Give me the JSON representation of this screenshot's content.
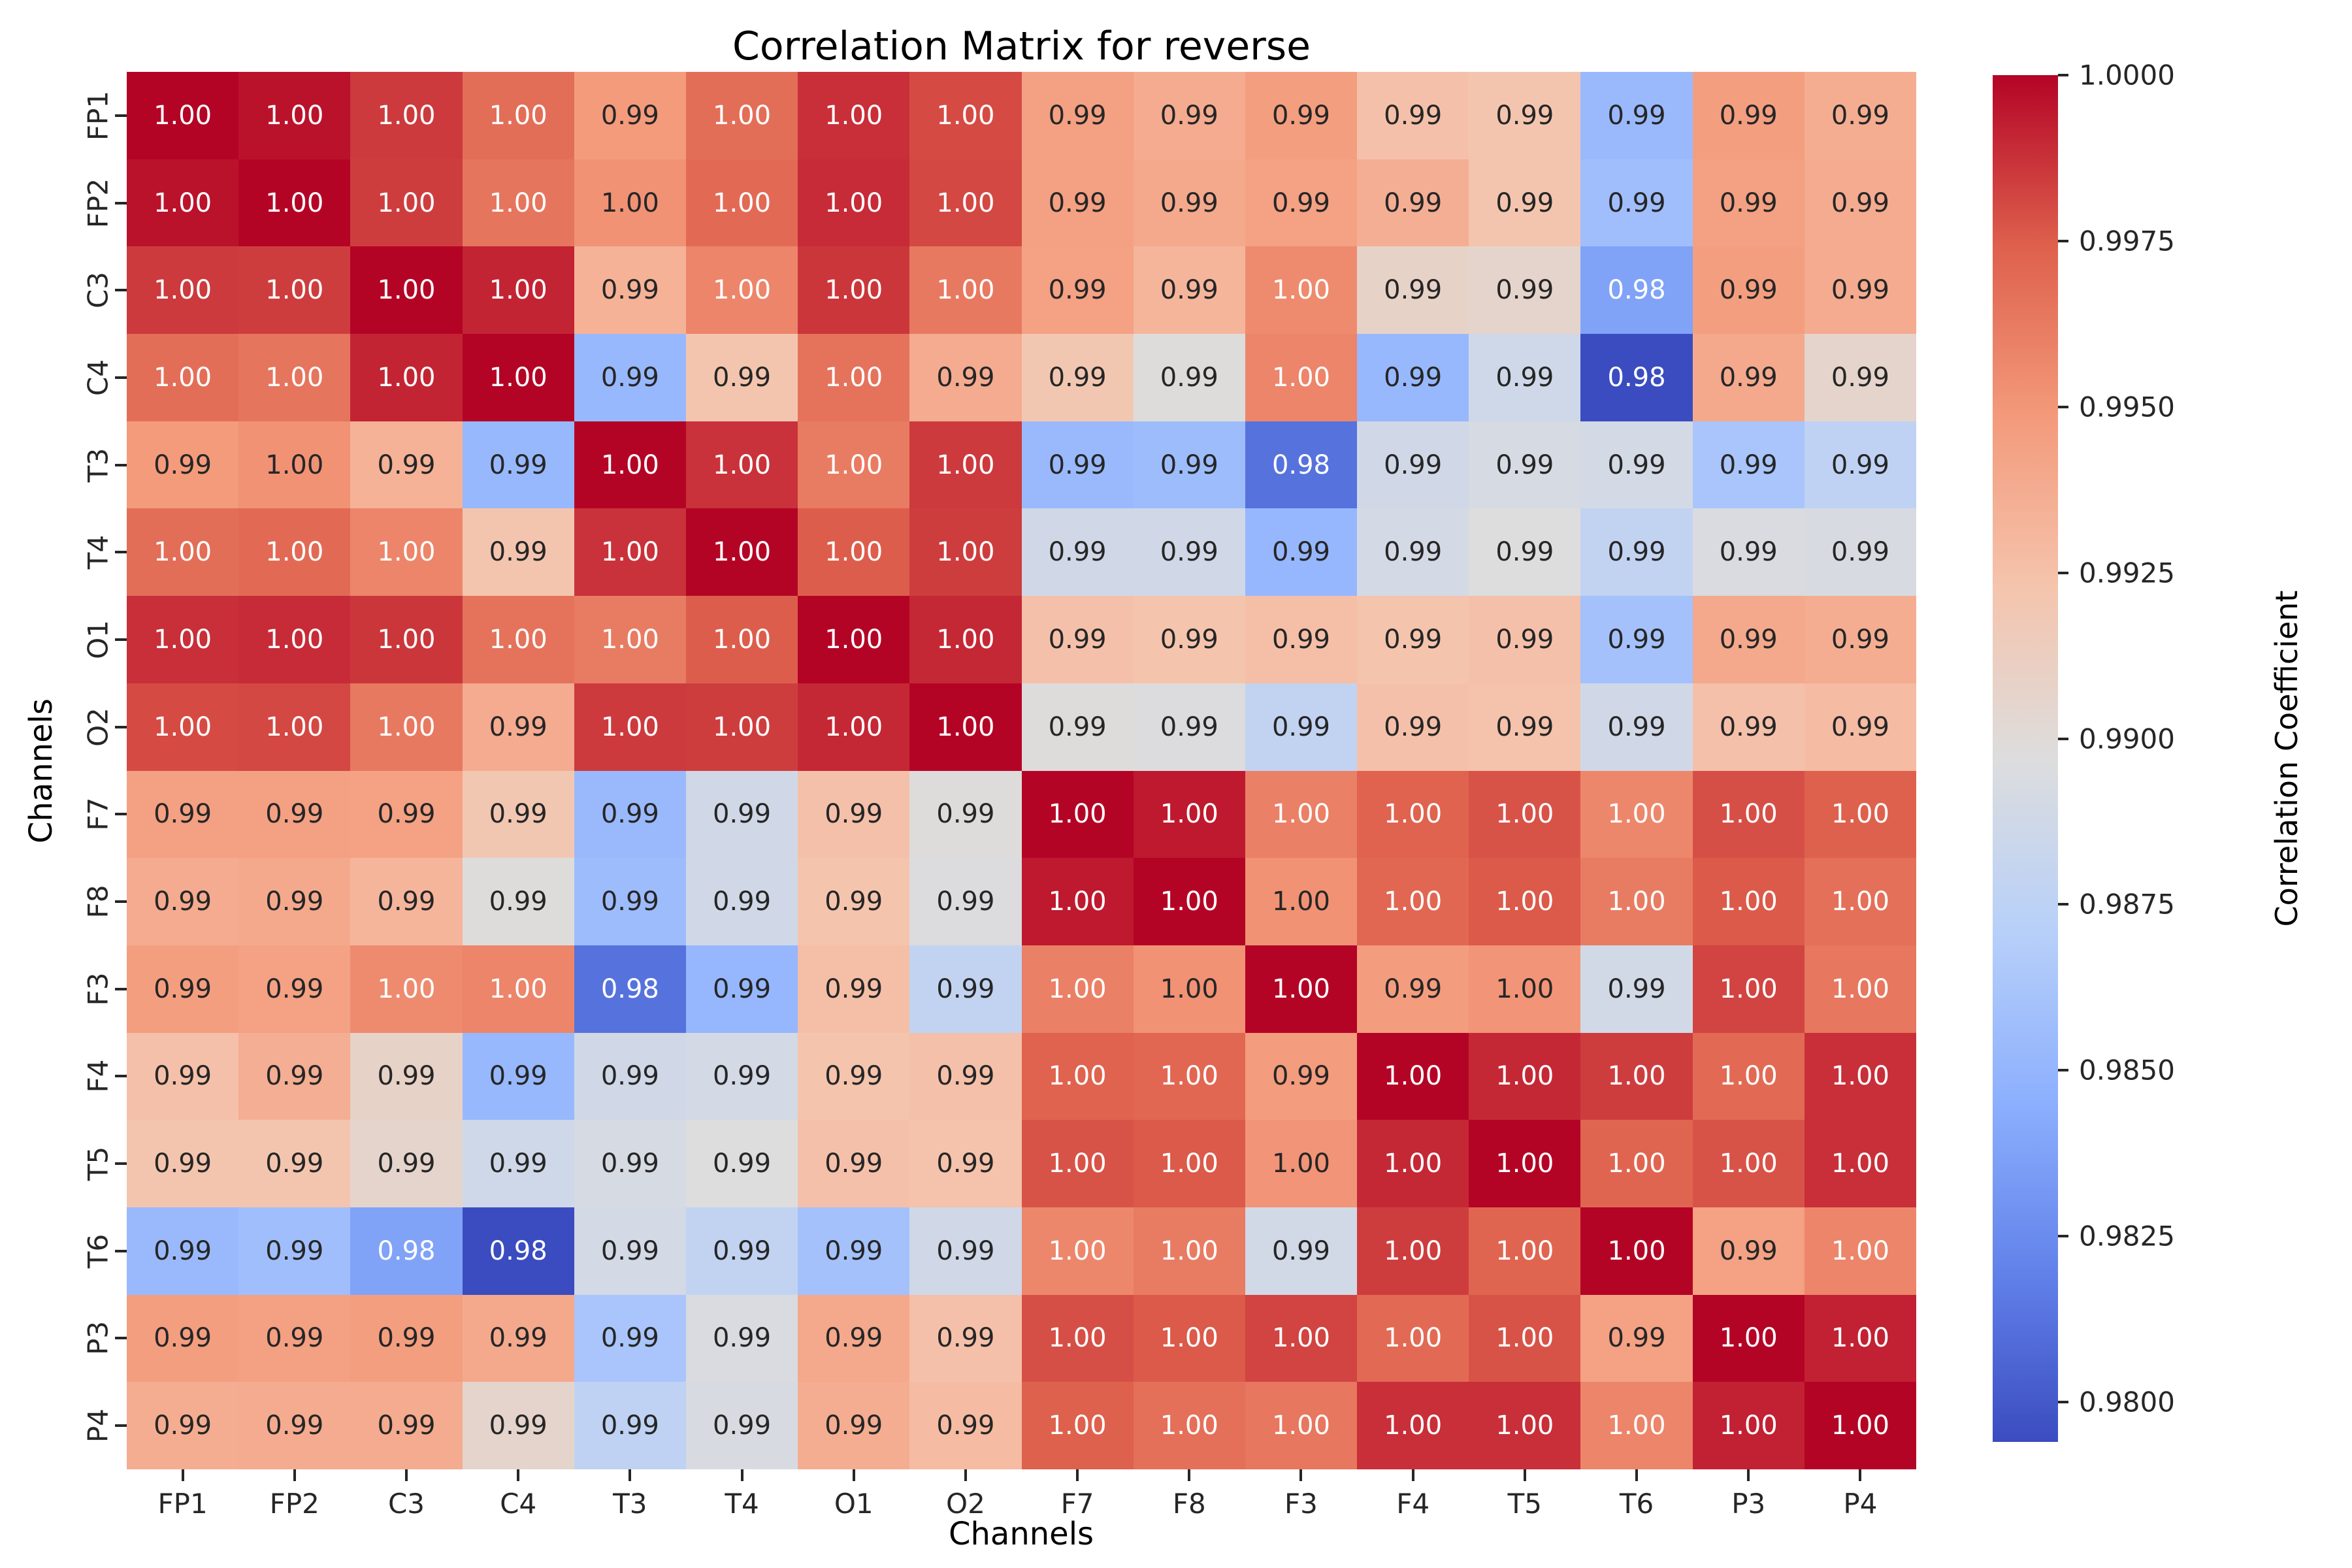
{
  "figure": {
    "background": "#ffffff"
  },
  "chart_data": {
    "type": "heatmap",
    "title": "Correlation Matrix for reverse",
    "xlabel": "Channels",
    "ylabel": "Channels",
    "colorbar_label": "Correlation Coefficient",
    "channels": [
      "FP1",
      "FP2",
      "C3",
      "C4",
      "T3",
      "T4",
      "O1",
      "O2",
      "F7",
      "F8",
      "F3",
      "F4",
      "T5",
      "T6",
      "P3",
      "P4"
    ],
    "labels": [
      [
        "1.00",
        "1.00",
        "1.00",
        "1.00",
        "0.99",
        "1.00",
        "1.00",
        "1.00",
        "0.99",
        "0.99",
        "0.99",
        "0.99",
        "0.99",
        "0.99",
        "0.99",
        "0.99"
      ],
      [
        "1.00",
        "1.00",
        "1.00",
        "1.00",
        "1.00",
        "1.00",
        "1.00",
        "1.00",
        "0.99",
        "0.99",
        "0.99",
        "0.99",
        "0.99",
        "0.99",
        "0.99",
        "0.99"
      ],
      [
        "1.00",
        "1.00",
        "1.00",
        "1.00",
        "0.99",
        "1.00",
        "1.00",
        "1.00",
        "0.99",
        "0.99",
        "1.00",
        "0.99",
        "0.99",
        "0.98",
        "0.99",
        "0.99"
      ],
      [
        "1.00",
        "1.00",
        "1.00",
        "1.00",
        "0.99",
        "0.99",
        "1.00",
        "0.99",
        "0.99",
        "0.99",
        "1.00",
        "0.99",
        "0.99",
        "0.98",
        "0.99",
        "0.99"
      ],
      [
        "0.99",
        "1.00",
        "0.99",
        "0.99",
        "1.00",
        "1.00",
        "1.00",
        "1.00",
        "0.99",
        "0.99",
        "0.98",
        "0.99",
        "0.99",
        "0.99",
        "0.99",
        "0.99"
      ],
      [
        "1.00",
        "1.00",
        "1.00",
        "0.99",
        "1.00",
        "1.00",
        "1.00",
        "1.00",
        "0.99",
        "0.99",
        "0.99",
        "0.99",
        "0.99",
        "0.99",
        "0.99",
        "0.99"
      ],
      [
        "1.00",
        "1.00",
        "1.00",
        "1.00",
        "1.00",
        "1.00",
        "1.00",
        "1.00",
        "0.99",
        "0.99",
        "0.99",
        "0.99",
        "0.99",
        "0.99",
        "0.99",
        "0.99"
      ],
      [
        "1.00",
        "1.00",
        "1.00",
        "0.99",
        "1.00",
        "1.00",
        "1.00",
        "1.00",
        "0.99",
        "0.99",
        "0.99",
        "0.99",
        "0.99",
        "0.99",
        "0.99",
        "0.99"
      ],
      [
        "0.99",
        "0.99",
        "0.99",
        "0.99",
        "0.99",
        "0.99",
        "0.99",
        "0.99",
        "1.00",
        "1.00",
        "1.00",
        "1.00",
        "1.00",
        "1.00",
        "1.00",
        "1.00"
      ],
      [
        "0.99",
        "0.99",
        "0.99",
        "0.99",
        "0.99",
        "0.99",
        "0.99",
        "0.99",
        "1.00",
        "1.00",
        "1.00",
        "1.00",
        "1.00",
        "1.00",
        "1.00",
        "1.00"
      ],
      [
        "0.99",
        "0.99",
        "1.00",
        "1.00",
        "0.98",
        "0.99",
        "0.99",
        "0.99",
        "1.00",
        "1.00",
        "1.00",
        "0.99",
        "1.00",
        "0.99",
        "1.00",
        "1.00"
      ],
      [
        "0.99",
        "0.99",
        "0.99",
        "0.99",
        "0.99",
        "0.99",
        "0.99",
        "0.99",
        "1.00",
        "1.00",
        "0.99",
        "1.00",
        "1.00",
        "1.00",
        "1.00",
        "1.00"
      ],
      [
        "0.99",
        "0.99",
        "0.99",
        "0.99",
        "0.99",
        "0.99",
        "0.99",
        "0.99",
        "1.00",
        "1.00",
        "1.00",
        "1.00",
        "1.00",
        "1.00",
        "1.00",
        "1.00"
      ],
      [
        "0.99",
        "0.99",
        "0.98",
        "0.98",
        "0.99",
        "0.99",
        "0.99",
        "0.99",
        "1.00",
        "1.00",
        "0.99",
        "1.00",
        "1.00",
        "1.00",
        "0.99",
        "1.00"
      ],
      [
        "0.99",
        "0.99",
        "0.99",
        "0.99",
        "0.99",
        "0.99",
        "0.99",
        "0.99",
        "1.00",
        "1.00",
        "1.00",
        "1.00",
        "1.00",
        "0.99",
        "1.00",
        "1.00"
      ],
      [
        "0.99",
        "0.99",
        "0.99",
        "0.99",
        "0.99",
        "0.99",
        "0.99",
        "0.99",
        "1.00",
        "1.00",
        "1.00",
        "1.00",
        "1.00",
        "1.00",
        "1.00",
        "1.00"
      ]
    ],
    "values": [
      [
        1.0,
        0.9996,
        0.9985,
        0.9968,
        0.9948,
        0.9968,
        0.9988,
        0.998,
        0.9945,
        0.9938,
        0.9946,
        0.9925,
        0.9922,
        0.9853,
        0.9946,
        0.9937
      ],
      [
        0.9996,
        1.0,
        0.9984,
        0.9965,
        0.9952,
        0.997,
        0.9989,
        0.9981,
        0.9945,
        0.9939,
        0.9944,
        0.9936,
        0.9922,
        0.9857,
        0.9945,
        0.9938
      ],
      [
        0.9985,
        0.9984,
        1.0,
        0.9991,
        0.9934,
        0.9958,
        0.9986,
        0.9963,
        0.9944,
        0.9932,
        0.9955,
        0.9908,
        0.9906,
        0.9838,
        0.9946,
        0.9938
      ],
      [
        0.9968,
        0.9965,
        0.9991,
        1.0,
        0.9852,
        0.9922,
        0.9966,
        0.9938,
        0.992,
        0.9898,
        0.9958,
        0.9852,
        0.9887,
        0.9794,
        0.9939,
        0.9906
      ],
      [
        0.9948,
        0.9952,
        0.9934,
        0.9852,
        1.0,
        0.9987,
        0.9962,
        0.9985,
        0.9853,
        0.9855,
        0.9812,
        0.9888,
        0.9892,
        0.989,
        0.9862,
        0.9876
      ],
      [
        0.9968,
        0.997,
        0.9958,
        0.9922,
        0.9987,
        1.0,
        0.9975,
        0.9984,
        0.9888,
        0.9888,
        0.9851,
        0.989,
        0.9897,
        0.9878,
        0.9894,
        0.9893
      ],
      [
        0.9988,
        0.9989,
        0.9986,
        0.9966,
        0.9962,
        0.9975,
        1.0,
        0.999,
        0.9925,
        0.9923,
        0.9926,
        0.9923,
        0.9925,
        0.9859,
        0.994,
        0.9937
      ],
      [
        0.998,
        0.9981,
        0.9963,
        0.9938,
        0.9985,
        0.9984,
        0.999,
        1.0,
        0.9898,
        0.9896,
        0.9878,
        0.9925,
        0.9924,
        0.9888,
        0.9925,
        0.9928
      ],
      [
        0.9945,
        0.9945,
        0.9944,
        0.992,
        0.9853,
        0.9888,
        0.9925,
        0.9898,
        1.0,
        0.9994,
        0.996,
        0.9973,
        0.9978,
        0.9957,
        0.9979,
        0.9974
      ],
      [
        0.9938,
        0.9939,
        0.9932,
        0.9898,
        0.9855,
        0.9888,
        0.9923,
        0.9896,
        0.9994,
        1.0,
        0.9952,
        0.9971,
        0.9976,
        0.9962,
        0.9976,
        0.9967
      ],
      [
        0.9946,
        0.9944,
        0.9955,
        0.9958,
        0.9812,
        0.9851,
        0.9926,
        0.9878,
        0.996,
        0.9952,
        1.0,
        0.9947,
        0.9951,
        0.9889,
        0.9982,
        0.9964
      ],
      [
        0.9925,
        0.9936,
        0.9908,
        0.9852,
        0.9888,
        0.989,
        0.9923,
        0.9925,
        0.9973,
        0.9971,
        0.9947,
        1.0,
        0.999,
        0.9984,
        0.997,
        0.9988
      ],
      [
        0.9922,
        0.9922,
        0.9906,
        0.9887,
        0.9892,
        0.9897,
        0.9925,
        0.9924,
        0.9978,
        0.9976,
        0.9951,
        0.999,
        1.0,
        0.9972,
        0.9978,
        0.9988
      ],
      [
        0.9853,
        0.9857,
        0.9838,
        0.9794,
        0.989,
        0.9878,
        0.9859,
        0.9888,
        0.9957,
        0.9962,
        0.9889,
        0.9984,
        0.9972,
        1.0,
        0.9944,
        0.9958
      ],
      [
        0.9946,
        0.9945,
        0.9946,
        0.9939,
        0.9862,
        0.9894,
        0.994,
        0.9925,
        0.9979,
        0.9976,
        0.9982,
        0.997,
        0.9978,
        0.9944,
        1.0,
        0.9992
      ],
      [
        0.9937,
        0.9938,
        0.9938,
        0.9906,
        0.9876,
        0.9893,
        0.9937,
        0.9928,
        0.9974,
        0.9967,
        0.9964,
        0.9988,
        0.9988,
        0.9958,
        0.9992,
        1.0
      ]
    ],
    "vmin": 0.9794,
    "vmax": 1.0,
    "colormap": "coolwarm",
    "colormap_anchors": [
      [
        0.0,
        "#3b4cc0"
      ],
      [
        0.125,
        "#6282ea"
      ],
      [
        0.25,
        "#8db0fe"
      ],
      [
        0.375,
        "#b8d0f9"
      ],
      [
        0.5,
        "#dddddd"
      ],
      [
        0.625,
        "#f5c4ad"
      ],
      [
        0.75,
        "#f49a7b"
      ],
      [
        0.875,
        "#de604d"
      ],
      [
        1.0,
        "#b40426"
      ]
    ],
    "colorbar_ticks": [
      "1.0000",
      "0.9975",
      "0.9950",
      "0.9925",
      "0.9900",
      "0.9875",
      "0.9850",
      "0.9825",
      "0.9800"
    ],
    "annotation_dark_text": "#262626",
    "annotation_light_text": "#ffffff",
    "grid": false,
    "legend_position": "right-colorbar"
  }
}
